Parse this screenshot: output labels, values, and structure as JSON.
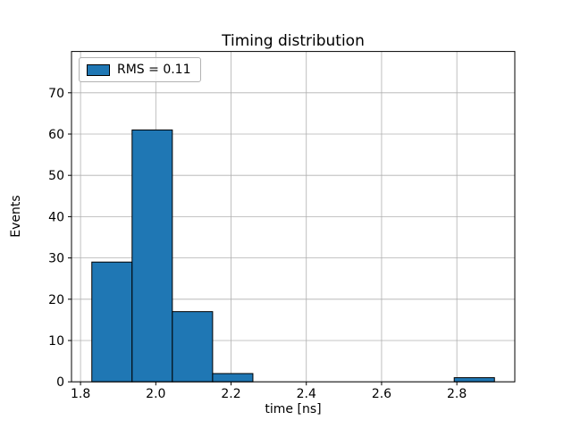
{
  "chart_data": {
    "type": "bar",
    "title": "Timing distribution",
    "xlabel": "time [ns]",
    "ylabel": "Events",
    "bin_edges": [
      1.83,
      1.937,
      2.044,
      2.151,
      2.258,
      2.365,
      2.472,
      2.579,
      2.686,
      2.793,
      2.9
    ],
    "values": [
      29,
      61,
      17,
      2,
      0,
      0,
      0,
      0,
      0,
      1
    ],
    "xlim": [
      1.776,
      2.954
    ],
    "ylim": [
      0,
      80
    ],
    "xticks": [
      1.8,
      2.0,
      2.2,
      2.4,
      2.6,
      2.8
    ],
    "yticks": [
      0,
      10,
      20,
      30,
      40,
      50,
      60,
      70
    ],
    "grid": true,
    "legend": {
      "label": "RMS = 0.11",
      "position": "upper left"
    },
    "colors": {
      "bar_fill": "#1f77b4",
      "bar_edge": "#000000",
      "grid_line": "#b0b0b0",
      "axis_line": "#000000",
      "tick_label": "#000000"
    }
  }
}
